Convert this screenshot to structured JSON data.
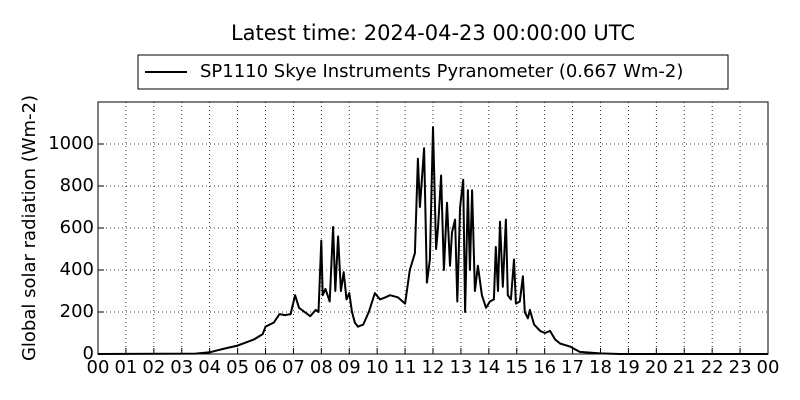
{
  "chart_data": {
    "type": "line",
    "title": "Latest time: 2024-04-23 00:00:00 UTC",
    "y_label": "Global solar radiation (Wm-2)",
    "legend": "upper center",
    "grid": true,
    "xlim": [
      0,
      24
    ],
    "ylim": [
      0,
      1200
    ],
    "yticks": [
      0,
      200,
      400,
      600,
      800,
      1000
    ],
    "xticks": [
      {
        "value": 0,
        "label": "00"
      },
      {
        "value": 1,
        "label": "01"
      },
      {
        "value": 2,
        "label": "02"
      },
      {
        "value": 3,
        "label": "03"
      },
      {
        "value": 4,
        "label": "04"
      },
      {
        "value": 5,
        "label": "05"
      },
      {
        "value": 6,
        "label": "06"
      },
      {
        "value": 7,
        "label": "07"
      },
      {
        "value": 8,
        "label": "08"
      },
      {
        "value": 9,
        "label": "09"
      },
      {
        "value": 10,
        "label": "10"
      },
      {
        "value": 11,
        "label": "11"
      },
      {
        "value": 12,
        "label": "12"
      },
      {
        "value": 13,
        "label": "13"
      },
      {
        "value": 14,
        "label": "14"
      },
      {
        "value": 15,
        "label": "15"
      },
      {
        "value": 16,
        "label": "16"
      },
      {
        "value": 17,
        "label": "17"
      },
      {
        "value": 18,
        "label": "18"
      },
      {
        "value": 19,
        "label": "19"
      },
      {
        "value": 20,
        "label": "20"
      },
      {
        "value": 21,
        "label": "21"
      },
      {
        "value": 22,
        "label": "22"
      },
      {
        "value": 23,
        "label": "23"
      },
      {
        "value": 24,
        "label": "00"
      }
    ],
    "series": [
      {
        "name": "SP1110 Skye Instruments Pyranometer (0.667 Wm-2)",
        "color": "#000000",
        "x": [
          0,
          3.5,
          4,
          4.3,
          4.6,
          5,
          5.3,
          5.6,
          5.9,
          6.0,
          6.3,
          6.5,
          6.7,
          6.9,
          7.06,
          7.2,
          7.4,
          7.6,
          7.8,
          7.9,
          8.0,
          8.05,
          8.15,
          8.3,
          8.42,
          8.5,
          8.6,
          8.7,
          8.8,
          8.9,
          9.0,
          9.1,
          9.2,
          9.31,
          9.5,
          9.7,
          9.92,
          10.1,
          10.3,
          10.46,
          10.74,
          11.0,
          11.17,
          11.35,
          11.46,
          11.53,
          11.68,
          11.78,
          11.89,
          12.0,
          12.11,
          12.18,
          12.29,
          12.39,
          12.5,
          12.61,
          12.68,
          12.79,
          12.87,
          12.97,
          13.08,
          13.15,
          13.25,
          13.32,
          13.4,
          13.5,
          13.61,
          13.75,
          13.9,
          14.04,
          14.18,
          14.25,
          14.33,
          14.4,
          14.5,
          14.61,
          14.68,
          14.79,
          14.9,
          14.97,
          15.11,
          15.22,
          15.29,
          15.4,
          15.47,
          15.62,
          15.84,
          16.01,
          16.19,
          16.37,
          16.55,
          16.91,
          17.26,
          17.98,
          18.7,
          24
        ],
        "values": [
          0,
          2,
          8,
          18,
          28,
          40,
          55,
          70,
          95,
          130,
          150,
          190,
          185,
          190,
          280,
          220,
          200,
          180,
          210,
          200,
          540,
          280,
          310,
          250,
          605,
          300,
          560,
          300,
          390,
          260,
          290,
          200,
          150,
          130,
          140,
          200,
          290,
          260,
          270,
          280,
          270,
          240,
          400,
          480,
          930,
          700,
          980,
          340,
          450,
          1080,
          500,
          600,
          850,
          400,
          720,
          420,
          580,
          640,
          250,
          700,
          830,
          200,
          780,
          400,
          780,
          300,
          420,
          280,
          220,
          250,
          260,
          510,
          300,
          630,
          320,
          640,
          280,
          260,
          450,
          240,
          250,
          370,
          200,
          170,
          210,
          140,
          110,
          100,
          110,
          70,
          50,
          35,
          10,
          3,
          0,
          0
        ]
      }
    ]
  }
}
